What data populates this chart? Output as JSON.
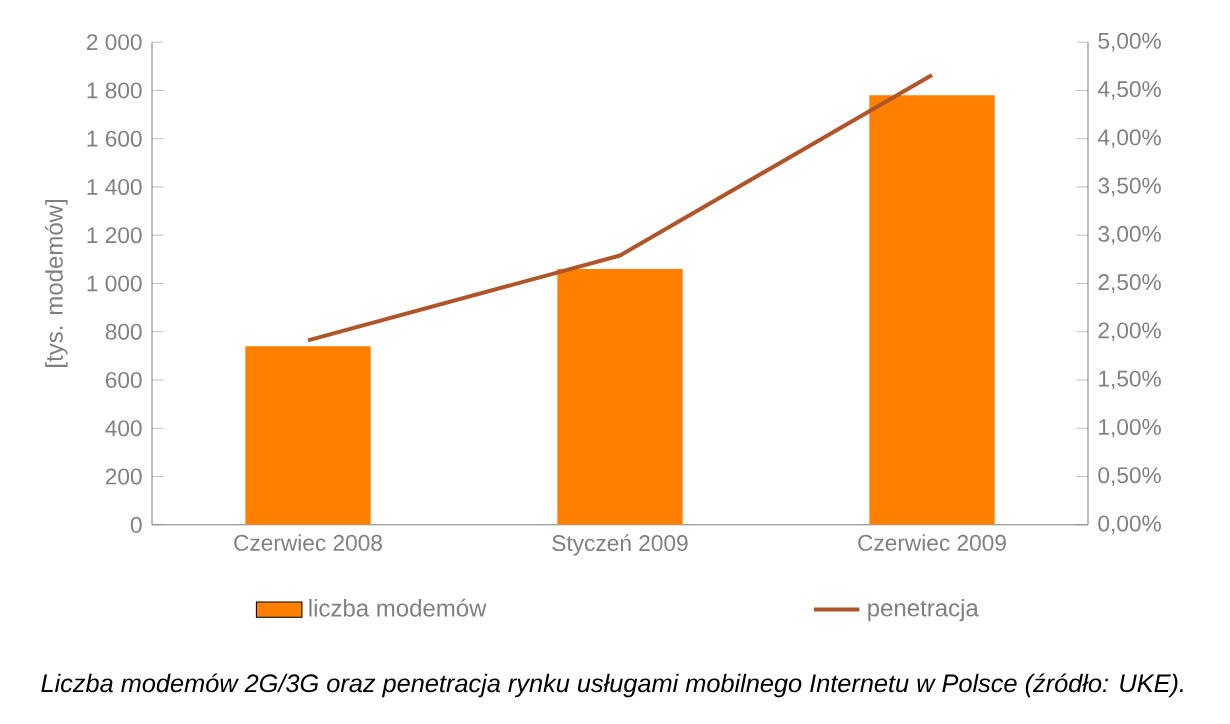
{
  "chart_data": {
    "type": "bar",
    "categories": [
      "Czerwiec 2008",
      "Styczeń 2009",
      "Czerwiec 2009"
    ],
    "ylabel": "[tys. modemów]",
    "series": [
      {
        "name": "liczba modemów",
        "color": "#ff8000",
        "values": [
          740,
          1060,
          1780
        ]
      },
      {
        "name": "penetracja",
        "type": "line",
        "axis": "y2",
        "color": "#b0552a",
        "values": [
          1.91,
          2.79,
          4.66
        ]
      }
    ],
    "ylim": [
      0,
      2000
    ],
    "yticks": [
      {
        "value": 0,
        "label": "0"
      },
      {
        "value": 200,
        "label": "200"
      },
      {
        "value": 400,
        "label": "400"
      },
      {
        "value": 600,
        "label": "600"
      },
      {
        "value": 800,
        "label": "800"
      },
      {
        "value": 1000,
        "label": "1 000"
      },
      {
        "value": 1200,
        "label": "1 200"
      },
      {
        "value": 1400,
        "label": "1 400"
      },
      {
        "value": 1600,
        "label": "1 600"
      },
      {
        "value": 1800,
        "label": "1 800"
      },
      {
        "value": 2000,
        "label": "2 000"
      }
    ],
    "y2lim": [
      0,
      5
    ],
    "y2ticks": [
      {
        "value": 0,
        "label": "0,00%"
      },
      {
        "value": 0.5,
        "label": "0,50%"
      },
      {
        "value": 1,
        "label": "1,00%"
      },
      {
        "value": 1.5,
        "label": "1,50%"
      },
      {
        "value": 2,
        "label": "2,00%"
      },
      {
        "value": 2.5,
        "label": "2,50%"
      },
      {
        "value": 3,
        "label": "3,00%"
      },
      {
        "value": 3.5,
        "label": "3,50%"
      },
      {
        "value": 4,
        "label": "4,00%"
      },
      {
        "value": 4.5,
        "label": "4,50%"
      },
      {
        "value": 5,
        "label": "5,00%"
      }
    ],
    "legend": "bottom",
    "annotations": [
      "Liczba modemów 2G/3G oraz penetracja rynku usługami mobilnego Internetu w Polsce (źródło: UKE)."
    ]
  }
}
